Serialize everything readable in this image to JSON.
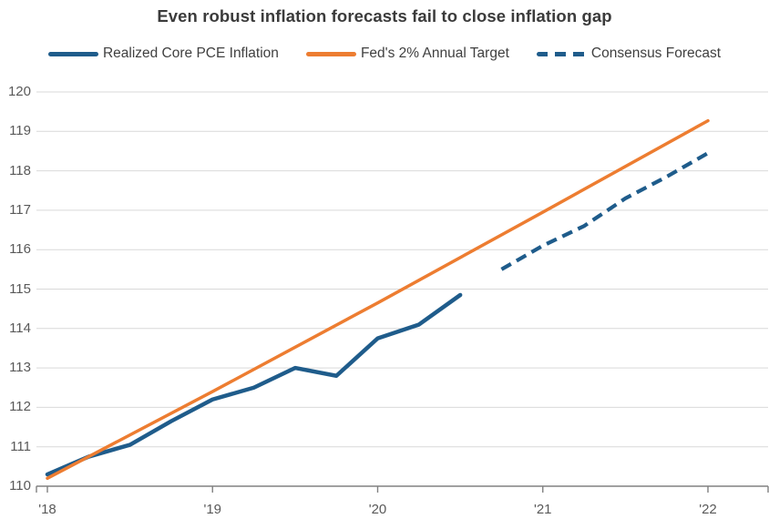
{
  "title": "Even robust inflation forecasts fail to close inflation gap",
  "legend": {
    "items": [
      {
        "label": "Realized Core PCE Inflation",
        "color": "#1f5c8b",
        "style": "solid"
      },
      {
        "label": "Fed's 2% Annual Target",
        "color": "#ed7d31",
        "style": "solid"
      },
      {
        "label": "Consensus Forecast",
        "color": "#1f5c8b",
        "style": "dashed"
      }
    ]
  },
  "chart_data": {
    "type": "line",
    "title": "Even robust inflation forecasts fail to close inflation gap",
    "xlabel": "",
    "ylabel": "",
    "ylim": [
      110,
      120
    ],
    "grid": "horizontal",
    "legend_position": "top",
    "y_ticks": [
      120,
      119,
      118,
      117,
      116,
      115,
      114,
      113,
      112,
      111,
      110
    ],
    "x_tick_labels": [
      "'18",
      "'19",
      "'20",
      "'21",
      "'22"
    ],
    "x_tick_quarters": [
      0,
      4,
      8,
      12,
      16
    ],
    "x_unit": "quarters from '18",
    "colors": {
      "gridline": "#d9d9d9",
      "axis": "#808080",
      "tick_text": "#595959"
    },
    "series": [
      {
        "name": "Realized Core PCE Inflation",
        "color": "#1f5c8b",
        "dash": false,
        "stroke_width": 4.5,
        "x_quarters": [
          0,
          1,
          2,
          3,
          4,
          5,
          6,
          7,
          8,
          9,
          10
        ],
        "values": [
          110.3,
          110.75,
          111.05,
          111.65,
          112.2,
          112.5,
          113.0,
          112.8,
          113.75,
          114.1,
          114.85
        ]
      },
      {
        "name": "Fed's 2% Annual Target",
        "color": "#ed7d31",
        "dash": false,
        "stroke_width": 3.5,
        "x_quarters": [
          0,
          4,
          8,
          12,
          16
        ],
        "values": [
          110.2,
          112.4,
          114.65,
          116.95,
          119.27
        ]
      },
      {
        "name": "Consensus Forecast",
        "color": "#1f5c8b",
        "dash": true,
        "stroke_width": 4.2,
        "x_quarters": [
          11,
          12,
          13,
          14,
          15,
          16
        ],
        "values": [
          115.5,
          116.1,
          116.6,
          117.3,
          117.85,
          118.45
        ]
      }
    ]
  }
}
